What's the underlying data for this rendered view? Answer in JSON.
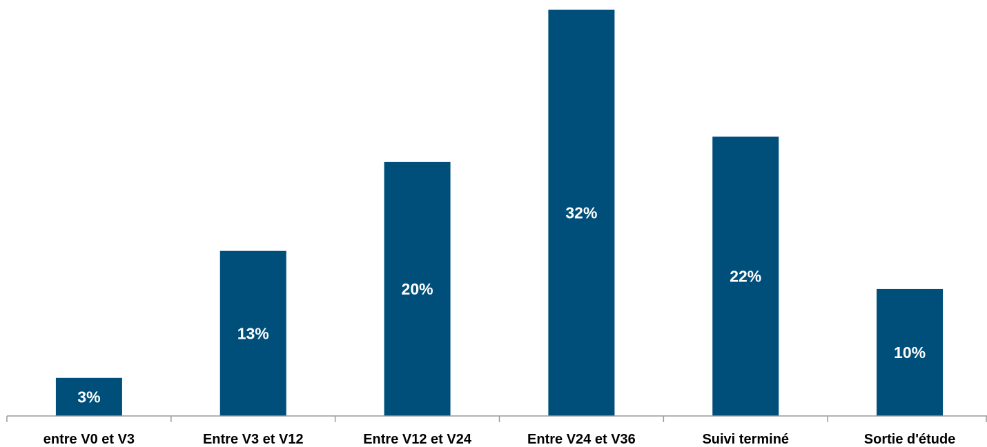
{
  "chart_data": {
    "type": "bar",
    "categories": [
      "entre V0 et V3",
      "Entre V3 et V12",
      "Entre V12 et V24",
      "Entre V24 et V36",
      "Suivi terminé",
      "Sortie d'étude"
    ],
    "values": [
      3,
      13,
      20,
      32,
      22,
      10
    ],
    "data_labels": [
      "3%",
      "13%",
      "20%",
      "32%",
      "22%",
      "10%"
    ],
    "show_data_labels": true,
    "title": "",
    "xlabel": "",
    "ylabel": "",
    "ylim": [
      0,
      32
    ],
    "grid": false,
    "legend": "none",
    "colors": {
      "bar": "#004f7a",
      "label": "#ffffff",
      "axis": "#9a9a9a"
    }
  }
}
